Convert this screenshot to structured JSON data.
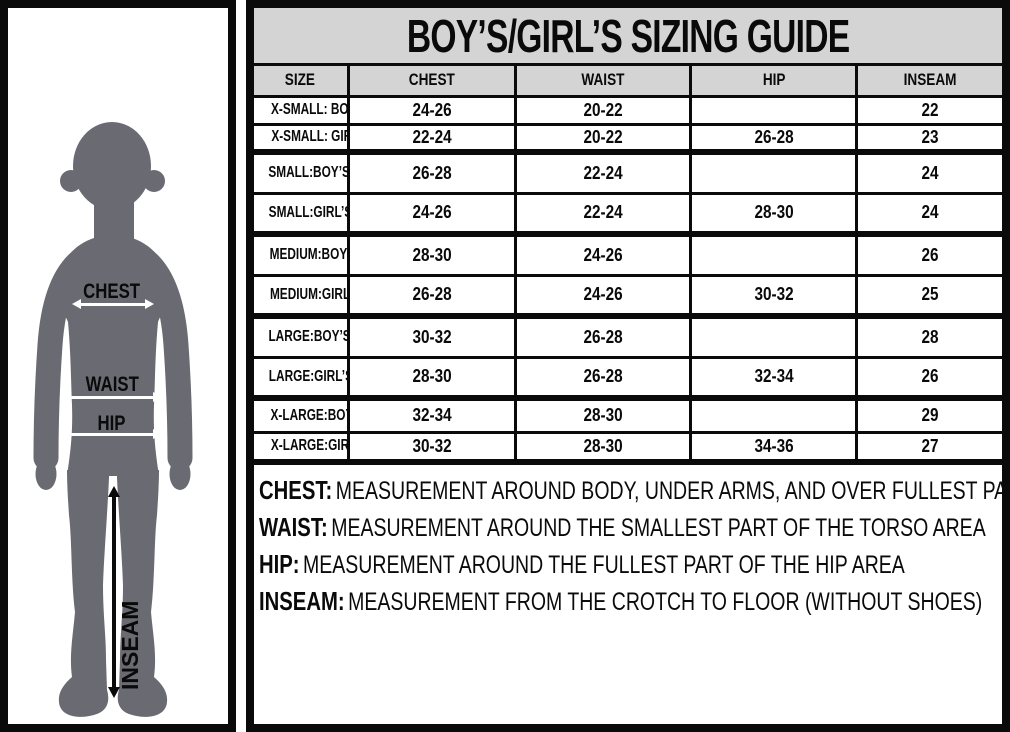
{
  "title": "BOY’S/GIRL’S SIZING GUIDE",
  "table": {
    "columns": [
      "SIZE",
      "CHEST",
      "WAIST",
      "HIP",
      "INSEAM"
    ],
    "rows": [
      {
        "size": "X-SMALL: BOY’S",
        "chest": "24-26",
        "waist": "20-22",
        "hip": "",
        "inseam": "22",
        "group_end": false
      },
      {
        "size": "X-SMALL: GIRL’S",
        "chest": "22-24",
        "waist": "20-22",
        "hip": "26-28",
        "inseam": "23",
        "group_end": true
      },
      {
        "size": "SMALL:BOY’S",
        "chest": "26-28",
        "waist": "22-24",
        "hip": "",
        "inseam": "24",
        "group_end": false
      },
      {
        "size": "SMALL:GIRL’S",
        "chest": "24-26",
        "waist": "22-24",
        "hip": "28-30",
        "inseam": "24",
        "group_end": true
      },
      {
        "size": "MEDIUM:BOY’S",
        "chest": "28-30",
        "waist": "24-26",
        "hip": "",
        "inseam": "26",
        "group_end": false
      },
      {
        "size": "MEDIUM:GIRL’S",
        "chest": "26-28",
        "waist": "24-26",
        "hip": "30-32",
        "inseam": "25",
        "group_end": true
      },
      {
        "size": "LARGE:BOY’S",
        "chest": "30-32",
        "waist": "26-28",
        "hip": "",
        "inseam": "28",
        "group_end": false
      },
      {
        "size": "LARGE:GIRL’S",
        "chest": "28-30",
        "waist": "26-28",
        "hip": "32-34",
        "inseam": "26",
        "group_end": true
      },
      {
        "size": "X-LARGE:BOY’S",
        "chest": "32-34",
        "waist": "28-30",
        "hip": "",
        "inseam": "29",
        "group_end": false
      },
      {
        "size": "X-LARGE:GIRL’S",
        "chest": "30-32",
        "waist": "28-30",
        "hip": "34-36",
        "inseam": "27",
        "group_end": true
      }
    ]
  },
  "notes": [
    {
      "label": "CHEST:",
      "text": "MEASUREMENT AROUND BODY, UNDER ARMS, AND OVER FULLEST PART OF CHEST"
    },
    {
      "label": "WAIST:",
      "text": "MEASUREMENT AROUND THE SMALLEST PART OF THE TORSO AREA"
    },
    {
      "label": "HIP:",
      "text": "MEASUREMENT AROUND THE FULLEST PART OF THE HIP AREA"
    },
    {
      "label": "INSEAM:",
      "text": "MEASUREMENT FROM THE CROTCH TO FLOOR (WITHOUT SHOES)"
    }
  ],
  "figure": {
    "chest_label": "CHEST",
    "waist_label": "WAIST",
    "hip_label": "HIP",
    "inseam_label": "INSEAM"
  },
  "colors": {
    "banner_gray": "#d4d4d4",
    "silhouette_gray": "#6a6a72",
    "line_black": "#0a0a0a",
    "arrow_white": "#ffffff",
    "page_bg": "#ffffff"
  }
}
